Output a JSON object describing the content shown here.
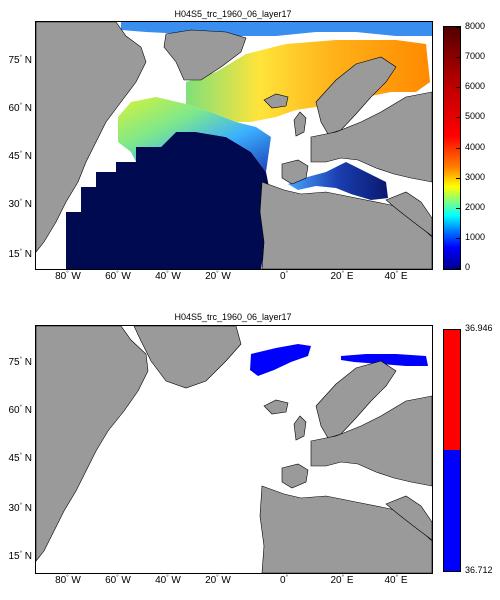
{
  "maps": [
    {
      "title": "H04S5_trc_1960_06_layer17",
      "lat_labels": [
        {
          "value": "75",
          "hemi": "N"
        },
        {
          "value": "60",
          "hemi": "N"
        },
        {
          "value": "45",
          "hemi": "N"
        },
        {
          "value": "30",
          "hemi": "N"
        },
        {
          "value": "15",
          "hemi": "N"
        }
      ],
      "lon_labels": [
        {
          "value": "80",
          "hemi": "W"
        },
        {
          "value": "60",
          "hemi": "W"
        },
        {
          "value": "40",
          "hemi": "W"
        },
        {
          "value": "20",
          "hemi": "W"
        },
        {
          "value": "0",
          "hemi": ""
        },
        {
          "value": "20",
          "hemi": "E"
        },
        {
          "value": "40",
          "hemi": "E"
        }
      ],
      "colorbar": {
        "ticks": [
          "8000",
          "7000",
          "6000",
          "5000",
          "4000",
          "3000",
          "2000",
          "1000",
          "0"
        ],
        "range": [
          0,
          8000
        ],
        "colormap": "jet"
      }
    },
    {
      "title": "H04S5_trc_1960_06_layer17",
      "lat_labels": [
        {
          "value": "75",
          "hemi": "N"
        },
        {
          "value": "60",
          "hemi": "N"
        },
        {
          "value": "45",
          "hemi": "N"
        },
        {
          "value": "30",
          "hemi": "N"
        },
        {
          "value": "15",
          "hemi": "N"
        }
      ],
      "lon_labels": [
        {
          "value": "80",
          "hemi": "W"
        },
        {
          "value": "60",
          "hemi": "W"
        },
        {
          "value": "40",
          "hemi": "W"
        },
        {
          "value": "20",
          "hemi": "W"
        },
        {
          "value": "0",
          "hemi": ""
        },
        {
          "value": "20",
          "hemi": "E"
        },
        {
          "value": "40",
          "hemi": "E"
        }
      ],
      "colorbar": {
        "ticks": [
          "36.946",
          "36.712"
        ],
        "range": [
          36.712,
          36.946
        ],
        "colors": {
          "upper": "#ff0000",
          "lower": "#0000ff"
        }
      }
    }
  ],
  "colors": {
    "land": "#9a9a9a",
    "ocean_nodata": "#ffffff",
    "deep": "#000a50"
  }
}
